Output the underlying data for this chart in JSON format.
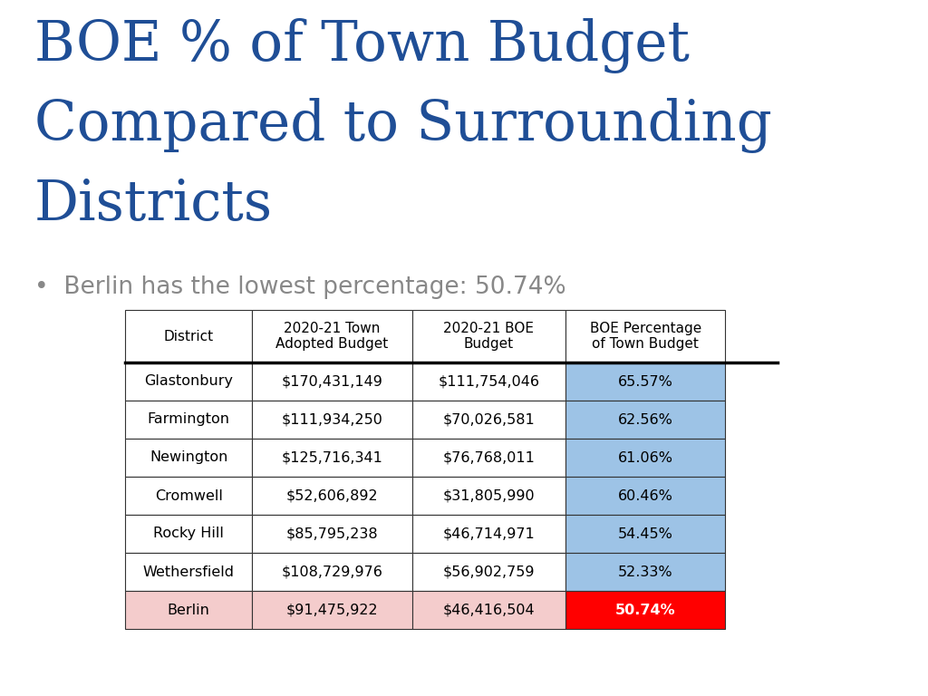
{
  "title_lines": [
    "BOE % of Town Budget",
    "Compared to Surrounding",
    "Districts"
  ],
  "title_color": "#1F4E96",
  "bullet_text": "Berlin has the lowest percentage: 50.74%",
  "bullet_color": "#888888",
  "columns": [
    "District",
    "2020-21 Town\nAdopted Budget",
    "2020-21 BOE\nBudget",
    "BOE Percentage\nof Town Budget"
  ],
  "rows": [
    [
      "Glastonbury",
      "$170,431,149",
      "$111,754,046",
      "65.57%"
    ],
    [
      "Farmington",
      "$111,934,250",
      "$70,026,581",
      "62.56%"
    ],
    [
      "Newington",
      "$125,716,341",
      "$76,768,011",
      "61.06%"
    ],
    [
      "Cromwell",
      "$52,606,892",
      "$31,805,990",
      "60.46%"
    ],
    [
      "Rocky Hill",
      "$85,795,238",
      "$46,714,971",
      "54.45%"
    ],
    [
      "Wethersfield",
      "$108,729,976",
      "$56,902,759",
      "52.33%"
    ],
    [
      "Berlin",
      "$91,475,922",
      "$46,416,504",
      "50.74%"
    ]
  ],
  "header_bg": "#ffffff",
  "regular_row_bg": "#ffffff",
  "highlight_pct_bg": "#9DC3E6",
  "berlin_row_bg": "#F4CCCC",
  "berlin_pct_bg": "#FF0000",
  "berlin_pct_text": "#ffffff",
  "background_color": "#ffffff",
  "title_fontsize": 44,
  "bullet_fontsize": 19,
  "table_fontsize": 11.5
}
